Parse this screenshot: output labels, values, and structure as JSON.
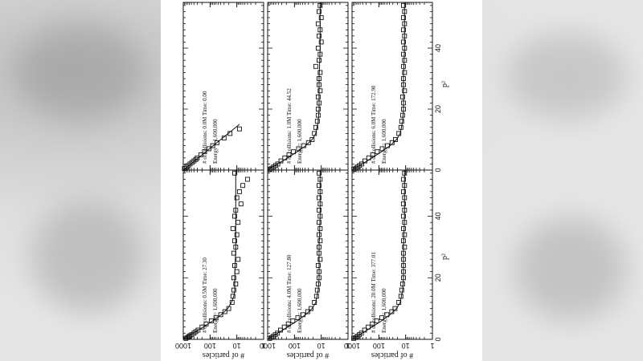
{
  "figure": {
    "ylabel": "# of particles",
    "xlabel": "p²"
  },
  "chart_data": [
    {
      "type": "scatter",
      "collisions_label": "# of collisions:",
      "collisions": "0.0M",
      "time_label": "Time:",
      "time": "0.00",
      "energy_label": "Energy =",
      "energy": "1,600,000",
      "x_ticks": [
        "0",
        "20",
        "40"
      ],
      "y_ticks": [
        "1000",
        "100",
        "10",
        "1"
      ],
      "xlim": [
        0,
        55
      ],
      "ylim": [
        1,
        1000
      ],
      "log_y": true,
      "points": {
        "x": [
          0.5,
          1.0,
          1.5,
          2.0,
          2.5,
          3.0,
          3.5,
          4.0,
          5.0,
          6.0,
          7.0,
          8.0,
          9.0,
          10.5,
          12.0,
          13.5
        ],
        "y": [
          900,
          750,
          650,
          560,
          470,
          400,
          340,
          300,
          220,
          160,
          110,
          80,
          55,
          30,
          18,
          8
        ]
      },
      "fit": {
        "x": [
          0,
          15
        ],
        "y": [
          1000,
          8
        ]
      }
    },
    {
      "type": "scatter",
      "collisions_label": "# of collisions:",
      "collisions": "0.5M",
      "time_label": "Time:",
      "time": "27.30",
      "energy_label": "Energy =",
      "energy": "1,600,000",
      "x_ticks": [
        "0",
        "20",
        "40"
      ],
      "y_ticks": [
        "1000",
        "100",
        "10",
        "1"
      ],
      "xlim": [
        0,
        55
      ],
      "ylim": [
        1,
        1000
      ],
      "log_y": true,
      "points": {
        "x": [
          0.3,
          0.6,
          0.9,
          1.2,
          1.5,
          2,
          2.5,
          3,
          4,
          5,
          6,
          7,
          8,
          9,
          10,
          12,
          14,
          16,
          18,
          20,
          22,
          24,
          26,
          28,
          30,
          32,
          34,
          36,
          38,
          40,
          42,
          44,
          46,
          48,
          50,
          52,
          54
        ],
        "y": [
          800,
          700,
          620,
          560,
          480,
          400,
          340,
          280,
          200,
          140,
          90,
          60,
          40,
          28,
          20,
          15,
          14,
          13,
          11,
          13,
          10,
          12,
          9,
          13,
          11,
          12,
          10,
          14,
          9,
          12,
          11,
          7,
          10,
          8,
          6,
          4,
          12
        ]
      },
      "fit": {
        "x": [
          0,
          2,
          4,
          6,
          8,
          10,
          12,
          14,
          16,
          20,
          30,
          40,
          50,
          55
        ],
        "y": [
          1000,
          420,
          180,
          80,
          38,
          22,
          16,
          13,
          12,
          12,
          11,
          11,
          11,
          11
        ]
      }
    },
    {
      "type": "scatter",
      "collisions_label": "# of collisions:",
      "collisions": "1.0M",
      "time_label": "Time:",
      "time": "44.52",
      "energy_label": "Energy =",
      "energy": "1,600,000",
      "x_ticks": [
        "0",
        "20",
        "40"
      ],
      "y_ticks": [
        "1000",
        "100",
        "10",
        "1"
      ],
      "xlim": [
        0,
        55
      ],
      "ylim": [
        1,
        1000
      ],
      "log_y": true,
      "points": {
        "x": [
          0.3,
          0.6,
          1,
          1.5,
          2,
          3,
          4,
          5,
          6,
          7,
          8,
          9,
          10,
          12,
          14,
          16,
          18,
          20,
          22,
          24,
          26,
          28,
          30,
          32,
          34,
          36,
          38,
          40,
          42,
          44,
          46,
          48,
          50,
          52,
          54
        ],
        "y": [
          820,
          700,
          600,
          500,
          420,
          320,
          230,
          160,
          110,
          70,
          45,
          30,
          22,
          18,
          16,
          14,
          13,
          13,
          12,
          13,
          11,
          12,
          12,
          11,
          16,
          12,
          11,
          13,
          10,
          12,
          11,
          13,
          10,
          12,
          11
        ]
      },
      "fit": {
        "x": [
          0,
          2,
          4,
          6,
          8,
          10,
          12,
          16,
          20,
          30,
          40,
          50,
          55
        ],
        "y": [
          1000,
          420,
          180,
          80,
          38,
          22,
          16,
          13,
          12,
          12,
          11,
          11,
          11
        ]
      }
    },
    {
      "type": "scatter",
      "collisions_label": "# of collisions:",
      "collisions": "4.0M",
      "time_label": "Time:",
      "time": "127.80",
      "energy_label": "Energy =",
      "energy": "1,600,000",
      "x_ticks": [
        "0",
        "20",
        "40"
      ],
      "y_ticks": [
        "1000",
        "100",
        "10",
        "1"
      ],
      "xlim": [
        0,
        55
      ],
      "ylim": [
        1,
        1000
      ],
      "log_y": true,
      "points": {
        "x": [
          0.3,
          0.6,
          1,
          1.5,
          2,
          3,
          4,
          5,
          6,
          7,
          8,
          9,
          10,
          12,
          14,
          16,
          18,
          20,
          22,
          24,
          26,
          28,
          30,
          32,
          34,
          36,
          38,
          40,
          42,
          44,
          46,
          48,
          50,
          52,
          54
        ],
        "y": [
          850,
          720,
          620,
          520,
          430,
          330,
          240,
          170,
          115,
          75,
          48,
          32,
          24,
          18,
          15,
          14,
          13,
          12,
          12,
          13,
          11,
          12,
          12,
          11,
          12,
          11,
          12,
          11,
          12,
          11,
          12,
          11,
          12,
          11,
          12
        ]
      },
      "fit": {
        "x": [
          0,
          2,
          4,
          6,
          8,
          10,
          12,
          16,
          20,
          30,
          40,
          50,
          55
        ],
        "y": [
          1000,
          420,
          180,
          80,
          38,
          22,
          16,
          13,
          12,
          12,
          11,
          11,
          11
        ]
      }
    },
    {
      "type": "scatter",
      "collisions_label": "# of collisions:",
      "collisions": "6.0M",
      "time_label": "Time:",
      "time": "172.90",
      "energy_label": "Energy =",
      "energy": "1,600,000",
      "x_ticks": [
        "0",
        "20",
        "40"
      ],
      "y_ticks": [
        "1000",
        "100",
        "10",
        "1"
      ],
      "xlim": [
        0,
        55
      ],
      "ylim": [
        1,
        1000
      ],
      "log_y": true,
      "points": {
        "x": [
          0.3,
          0.6,
          1,
          1.5,
          2,
          3,
          4,
          5,
          6,
          7,
          8,
          9,
          10,
          12,
          14,
          16,
          18,
          20,
          22,
          24,
          26,
          28,
          30,
          32,
          34,
          36,
          38,
          40,
          42,
          44,
          46,
          48,
          50,
          52,
          54
        ],
        "y": [
          860,
          730,
          630,
          530,
          440,
          330,
          240,
          170,
          115,
          75,
          48,
          32,
          24,
          18,
          15,
          14,
          13,
          12,
          12,
          13,
          11,
          12,
          12,
          11,
          12,
          11,
          12,
          11,
          12,
          11,
          12,
          11,
          12,
          11,
          12
        ]
      },
      "fit": {
        "x": [
          0,
          2,
          4,
          6,
          8,
          10,
          12,
          16,
          20,
          30,
          40,
          50,
          55
        ],
        "y": [
          1000,
          420,
          180,
          80,
          38,
          22,
          16,
          13,
          12,
          12,
          11,
          11,
          11
        ]
      }
    },
    {
      "type": "scatter",
      "collisions_label": "# of collisions:",
      "collisions": "20.0M",
      "time_label": "Time:",
      "time": "377.01",
      "energy_label": "Energy =",
      "energy": "1,600,000",
      "x_ticks": [
        "0",
        "20",
        "40"
      ],
      "y_ticks": [
        "1000",
        "100",
        "10",
        "1"
      ],
      "xlim": [
        0,
        55
      ],
      "ylim": [
        1,
        1000
      ],
      "log_y": true,
      "points": {
        "x": [
          0.3,
          0.6,
          1,
          1.5,
          2,
          3,
          4,
          5,
          6,
          7,
          8,
          9,
          10,
          12,
          14,
          16,
          18,
          20,
          22,
          24,
          26,
          28,
          30,
          32,
          34,
          36,
          38,
          40,
          42,
          44,
          46,
          48,
          50,
          52,
          54
        ],
        "y": [
          870,
          740,
          640,
          540,
          450,
          340,
          250,
          175,
          120,
          78,
          50,
          33,
          25,
          18,
          15,
          14,
          13,
          12,
          12,
          12,
          12,
          12,
          11,
          12,
          11,
          12,
          11,
          12,
          11,
          12,
          11,
          12,
          11,
          12,
          11
        ]
      },
      "fit": {
        "x": [
          0,
          2,
          4,
          6,
          8,
          10,
          12,
          16,
          20,
          30,
          40,
          50,
          55
        ],
        "y": [
          1000,
          420,
          180,
          80,
          38,
          22,
          16,
          13,
          12,
          12,
          11,
          11,
          11
        ]
      }
    }
  ]
}
